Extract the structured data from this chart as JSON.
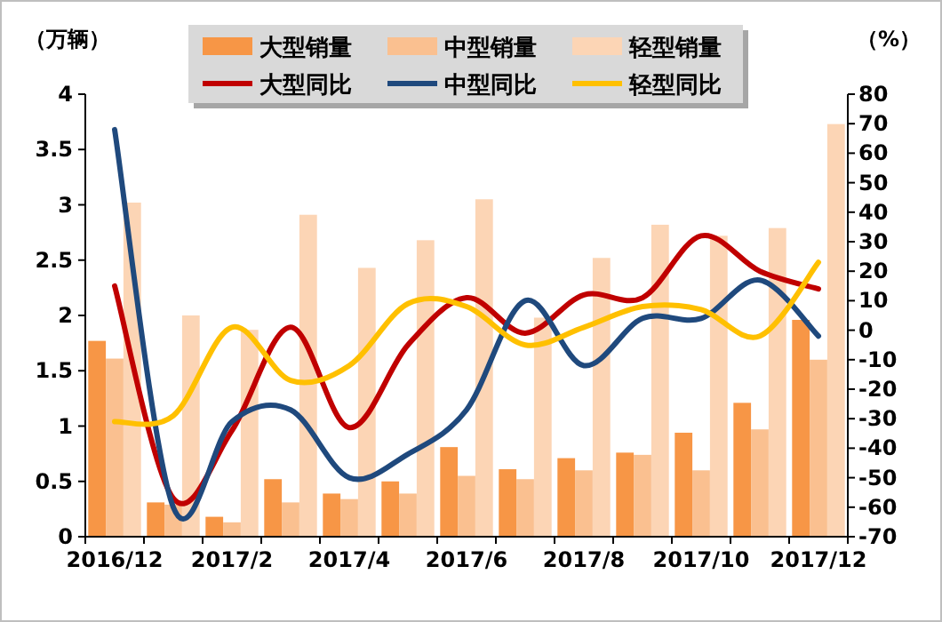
{
  "chart_data": {
    "type": "bar",
    "ylabel": "（万辆）",
    "y2label": "（%）",
    "categories": [
      "2016/12",
      null,
      "2017/2",
      null,
      "2017/4",
      null,
      "2017/6",
      null,
      "2017/8",
      null,
      "2017/10",
      null,
      "2017/12"
    ],
    "series": [
      {
        "name": "大型销量",
        "color": "#f79646",
        "values": [
          1.77,
          0.31,
          0.18,
          0.52,
          0.39,
          0.5,
          0.81,
          0.61,
          0.71,
          0.76,
          0.94,
          1.21,
          1.96
        ]
      },
      {
        "name": "中型销量",
        "color": "#fac090",
        "values": [
          1.61,
          0.29,
          0.13,
          0.31,
          0.34,
          0.39,
          0.55,
          0.52,
          0.6,
          0.74,
          0.6,
          0.97,
          1.6
        ]
      },
      {
        "name": "轻型销量",
        "color": "#fcd5b5",
        "values": [
          3.02,
          2.0,
          1.87,
          2.91,
          2.43,
          2.68,
          3.05,
          1.98,
          2.52,
          2.82,
          2.72,
          2.79,
          3.73
        ]
      },
      {
        "name": "大型同比",
        "type": "line",
        "axis": "y2",
        "color": "#c00000",
        "values": [
          15,
          -57,
          -34,
          1,
          -33,
          -5,
          11,
          -1,
          12,
          11,
          32,
          20,
          14
        ]
      },
      {
        "name": "中型同比",
        "type": "line",
        "axis": "y2",
        "color": "#1f497d",
        "values": [
          68,
          -60,
          -31,
          -27,
          -50,
          -42,
          -27,
          10,
          -12,
          4,
          4,
          17,
          -2
        ]
      },
      {
        "name": "轻型同比",
        "type": "line",
        "axis": "y2",
        "color": "#ffc000",
        "values": [
          -31,
          -29,
          1,
          -17,
          -12,
          9,
          8,
          -5,
          1,
          8,
          7,
          -2,
          23
        ]
      }
    ],
    "ylim": [
      0,
      4
    ],
    "yticks": [
      0,
      0.5,
      1,
      1.5,
      2,
      2.5,
      3,
      3.5,
      4
    ],
    "y2lim": [
      -70,
      80
    ],
    "y2ticks": [
      -70,
      -60,
      -50,
      -40,
      -30,
      -20,
      -10,
      0,
      10,
      20,
      30,
      40,
      50,
      60,
      70,
      80
    ],
    "legend": "top",
    "marker": "none",
    "grid": false
  }
}
